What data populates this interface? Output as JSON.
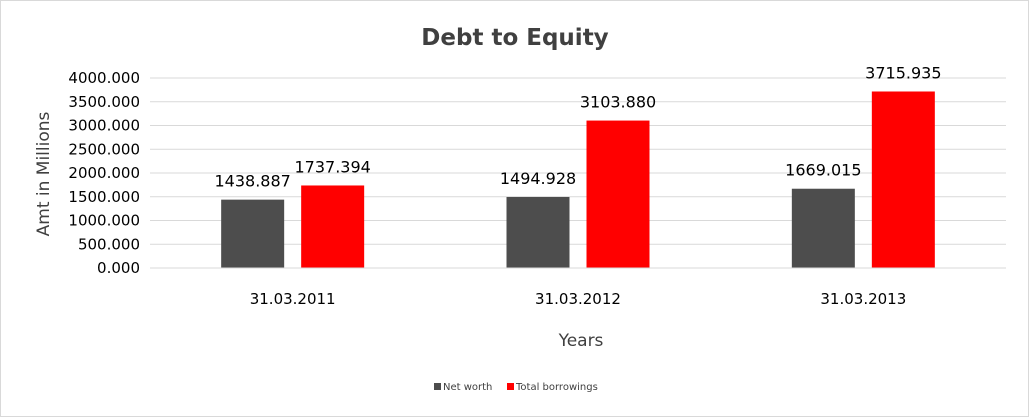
{
  "chart_data": {
    "type": "bar",
    "title": "Debt to Equity",
    "xlabel": "Years",
    "ylabel": "Amt in Millions",
    "categories": [
      "31.03.2011",
      "31.03.2012",
      "31.03.2013"
    ],
    "series": [
      {
        "name": "Net worth",
        "values": [
          1438.887,
          1494.928,
          1669.015
        ],
        "value_labels": [
          "1438.887",
          "1494.928",
          "1669.015"
        ],
        "color": "#4d4d4d"
      },
      {
        "name": "Total borrowings",
        "values": [
          1737.394,
          3103.88,
          3715.935
        ],
        "value_labels": [
          "1737.394",
          "3103.880",
          "3715.935"
        ],
        "color": "#ff0000"
      }
    ],
    "ylim": [
      0,
      4000
    ],
    "yticks": [
      0,
      500,
      1000,
      1500,
      2000,
      2500,
      3000,
      3500,
      4000
    ],
    "ytick_labels": [
      "0.000",
      "500.000",
      "1000.000",
      "1500.000",
      "2000.000",
      "2500.000",
      "3000.000",
      "3500.000",
      "4000.000"
    ],
    "grid": true,
    "legend_position": "bottom"
  }
}
